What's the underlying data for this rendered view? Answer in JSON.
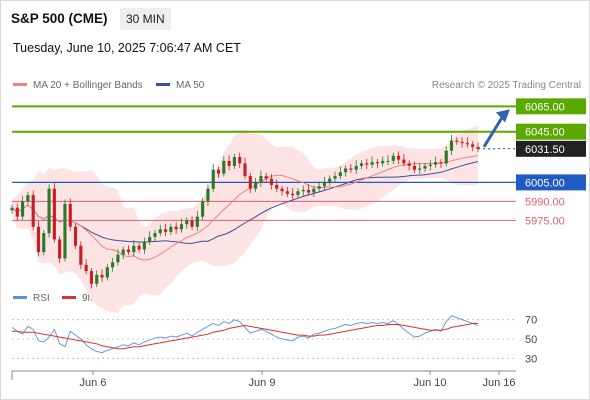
{
  "header": {
    "title": "S&P 500 (CME)",
    "timeframe": "30 MIN",
    "datetime": "Tuesday, June 10, 2025 7:06:47 AM CET"
  },
  "legend": {
    "ma20_label": "MA 20 + Bollinger Bands",
    "ma50_label": "MA 50",
    "rsi_label": "RSI",
    "ma9_label": "9MA"
  },
  "credit": "Research © 2025 Trading Central",
  "colors": {
    "resistance": "#5aa800",
    "pivot": "#1f5bc4",
    "support": "#e06070",
    "ma20": "#f08080",
    "bollinger_fill": "#fde4e4",
    "ma50": "#3a4f9a",
    "rsi": "#5b8ee0",
    "rsi_ma": "#e03030",
    "arrow": "#2f63b0",
    "candle_up": "#2a7a2a",
    "candle_down": "#c82020"
  },
  "chart_data": {
    "type": "candlestick",
    "levels": [
      {
        "value": 6065.0,
        "label": "6065.00",
        "kind": "resistance"
      },
      {
        "value": 6045.0,
        "label": "6045.00",
        "kind": "resistance"
      },
      {
        "value": 6031.5,
        "label": "6031.50",
        "kind": "last"
      },
      {
        "value": 6005.0,
        "label": "6005.00",
        "kind": "pivot"
      },
      {
        "value": 5990.0,
        "label": "5990.00",
        "kind": "support"
      },
      {
        "value": 5975.0,
        "label": "5975.00",
        "kind": "support"
      }
    ],
    "price_range": [
      5928,
      6070
    ],
    "close_path": [
      5985,
      5978,
      5990,
      5995,
      5970,
      5950,
      5965,
      6000,
      5960,
      5945,
      5988,
      5970,
      5955,
      5940,
      5935,
      5925,
      5932,
      5930,
      5938,
      5942,
      5948,
      5952,
      5950,
      5955,
      5952,
      5958,
      5962,
      5965,
      5968,
      5966,
      5970,
      5968,
      5972,
      5975,
      5970,
      5978,
      5990,
      6000,
      6015,
      6012,
      6022,
      6018,
      6025,
      6020,
      6010,
      6000,
      6005,
      6010,
      6008,
      6003,
      6000,
      5998,
      5996,
      5995,
      5998,
      5999,
      5997,
      6000,
      6002,
      6005,
      6008,
      6010,
      6013,
      6016,
      6015,
      6018,
      6020,
      6019,
      6021,
      6020,
      6022,
      6022,
      6026,
      6023,
      6020,
      6018,
      6015,
      6016,
      6018,
      6019,
      6021,
      6020,
      6030,
      6038,
      6037,
      6036,
      6035,
      6033,
      6031.5
    ],
    "rsi_axis": {
      "ticks": [
        70,
        50,
        30
      ],
      "range": [
        20,
        80
      ]
    },
    "rsi": [
      62,
      58,
      55,
      63,
      60,
      48,
      47,
      52,
      60,
      45,
      42,
      58,
      54,
      50,
      44,
      40,
      37,
      36,
      38,
      40,
      42,
      44,
      43,
      46,
      44,
      47,
      49,
      51,
      52,
      51,
      53,
      52,
      54,
      56,
      53,
      57,
      60,
      63,
      66,
      64,
      68,
      66,
      70,
      68,
      62,
      56,
      58,
      60,
      58,
      55,
      52,
      50,
      49,
      48,
      52,
      53,
      51,
      55,
      56,
      58,
      60,
      61,
      63,
      65,
      64,
      66,
      67,
      66,
      67,
      66,
      67,
      66,
      69,
      65,
      60,
      56,
      52,
      53,
      56,
      58,
      60,
      58,
      68,
      74,
      72,
      70,
      68,
      66,
      64
    ],
    "rsi_ma9": [
      58,
      58,
      57,
      57,
      57,
      56,
      55,
      54,
      53,
      52,
      51,
      50,
      49,
      48,
      47,
      46,
      45,
      43,
      42,
      41,
      40,
      40,
      41,
      42,
      42,
      43,
      44,
      45,
      46,
      47,
      48,
      49,
      50,
      51,
      52,
      53,
      54,
      55,
      57,
      58,
      59,
      61,
      62,
      63,
      64,
      63,
      62,
      61,
      60,
      59,
      58,
      57,
      56,
      55,
      54,
      54,
      53,
      53,
      54,
      54,
      55,
      56,
      57,
      58,
      59,
      60,
      61,
      62,
      63,
      64,
      64,
      65,
      65,
      65,
      64,
      63,
      62,
      61,
      60,
      59,
      59,
      59,
      60,
      62,
      63,
      64,
      65,
      66,
      66
    ],
    "x_ticks": [
      "Jun 6",
      "Jun 9",
      "Jun 10",
      "Jun 16"
    ]
  }
}
